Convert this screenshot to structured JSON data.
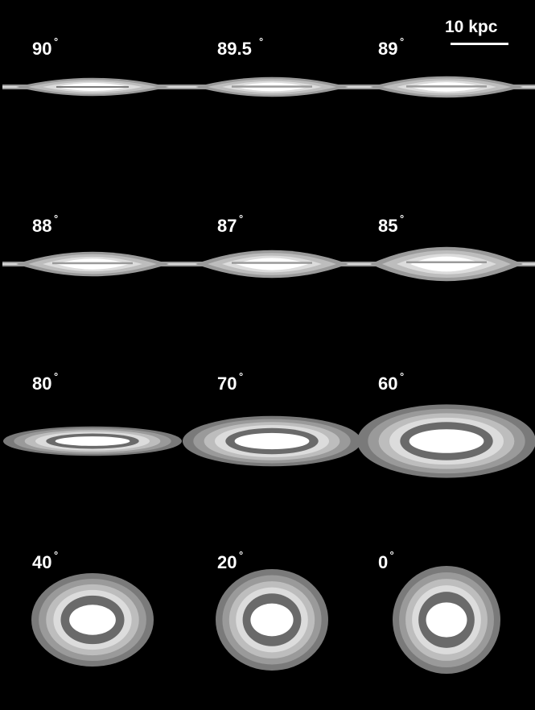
{
  "scale_bar": {
    "label": "10 kpc"
  },
  "degree_symbol": "°",
  "colors": {
    "background": "#000000",
    "rings": [
      "#7a7a7a",
      "#9a9a9a",
      "#bdbdbd",
      "#dcdcdc",
      "#6a6a6a",
      "#ffffff"
    ]
  },
  "panels": [
    {
      "label": "90",
      "inclination": 90
    },
    {
      "label": "89.5",
      "inclination": 89.5
    },
    {
      "label": "89",
      "inclination": 89
    },
    {
      "label": "88",
      "inclination": 88
    },
    {
      "label": "87",
      "inclination": 87
    },
    {
      "label": "85",
      "inclination": 85
    },
    {
      "label": "80",
      "inclination": 80
    },
    {
      "label": "70",
      "inclination": 70
    },
    {
      "label": "60",
      "inclination": 60
    },
    {
      "label": "40",
      "inclination": 40
    },
    {
      "label": "20",
      "inclination": 20
    },
    {
      "label": "0",
      "inclination": 0
    }
  ]
}
